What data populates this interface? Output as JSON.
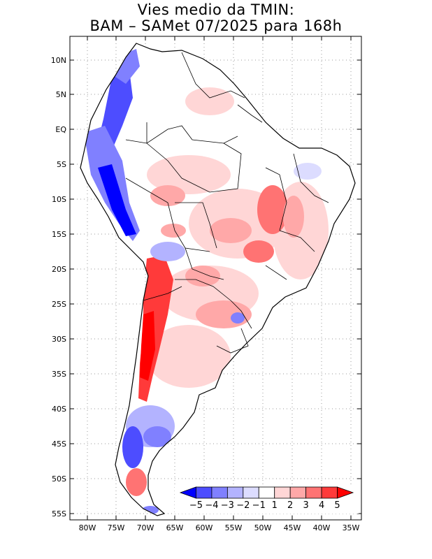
{
  "title": {
    "line1": "Vies medio da TMIN:",
    "line2": "BAM – SAMet 07/2025  para 168h"
  },
  "axes": {
    "lat_labels": [
      "10N",
      "5N",
      "EQ",
      "5S",
      "10S",
      "15S",
      "20S",
      "25S",
      "30S",
      "35S",
      "40S",
      "45S",
      "50S",
      "55S"
    ],
    "lon_labels": [
      "80W",
      "75W",
      "70W",
      "65W",
      "60W",
      "55W",
      "50W",
      "45W",
      "40W",
      "35W"
    ]
  },
  "colorbar": {
    "labels": [
      "-5",
      "-4",
      "-3",
      "-2",
      "-1",
      "1",
      "2",
      "3",
      "4",
      "5"
    ],
    "colors": [
      "#0000ff",
      "#4d4dff",
      "#8080ff",
      "#b3b3ff",
      "#dcdcff",
      "#ffffff",
      "#ffd6d6",
      "#ffa8a8",
      "#ff7373",
      "#ff3a3a",
      "#ff0000"
    ]
  },
  "colors": {
    "land_outline": "#000000",
    "grid": "#9a9a9a",
    "strong_red": "#ff1a1a",
    "strong_blue": "#1a1aff"
  }
}
